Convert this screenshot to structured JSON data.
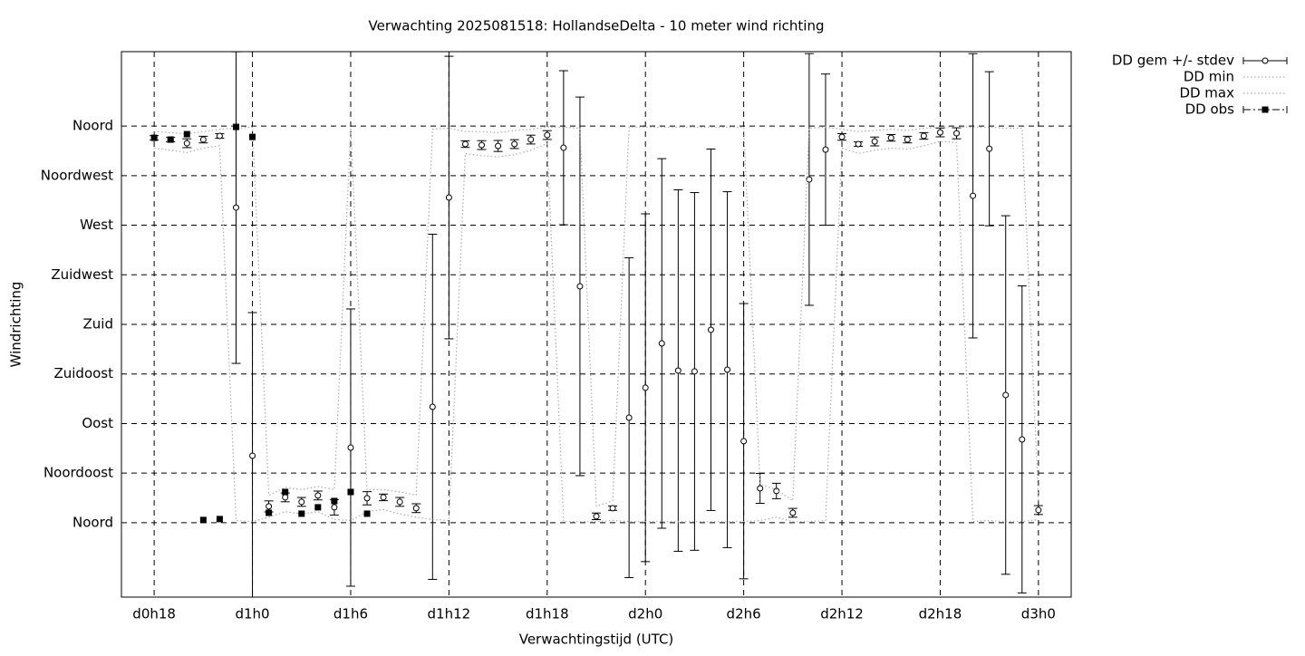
{
  "chart_data": {
    "type": "errorbar-line",
    "title": "Verwachting 2025081518: HollandseDelta - 10 meter wind richting",
    "x_label": "Verwachtingstijd (UTC)",
    "y_label": "Windrichting",
    "x": [
      18,
      19,
      20,
      21,
      22,
      23,
      24,
      25,
      26,
      27,
      28,
      29,
      30,
      31,
      32,
      33,
      34,
      35,
      36,
      37,
      38,
      39,
      40,
      41,
      42,
      43,
      44,
      45,
      46,
      47,
      48,
      49,
      50,
      51,
      52,
      53,
      54,
      55,
      56,
      57,
      58,
      59,
      60,
      61,
      62,
      63,
      64,
      65,
      66,
      67,
      68,
      69,
      70,
      71,
      72
    ],
    "xlim": [
      16,
      74
    ],
    "xticks": [
      {
        "value": 18,
        "label": "d0h18"
      },
      {
        "value": 24,
        "label": "d1h0"
      },
      {
        "value": 30,
        "label": "d1h6"
      },
      {
        "value": 36,
        "label": "d1h12"
      },
      {
        "value": 42,
        "label": "d1h18"
      },
      {
        "value": 48,
        "label": "d2h0"
      },
      {
        "value": 54,
        "label": "d2h6"
      },
      {
        "value": 60,
        "label": "d2h12"
      },
      {
        "value": 66,
        "label": "d2h18"
      },
      {
        "value": 72,
        "label": "d3h0"
      }
    ],
    "ylim": [
      -67.5,
      427.5
    ],
    "yticks": [
      {
        "value": 0,
        "label": "Noord"
      },
      {
        "value": 45,
        "label": "Noordoost"
      },
      {
        "value": 90,
        "label": "Oost"
      },
      {
        "value": 135,
        "label": "Zuidoost"
      },
      {
        "value": 180,
        "label": "Zuid"
      },
      {
        "value": 225,
        "label": "Zuidwest"
      },
      {
        "value": 270,
        "label": "West"
      },
      {
        "value": 315,
        "label": "Noordwest"
      },
      {
        "value": 360,
        "label": "Noord"
      }
    ],
    "grid": true,
    "legend": "outside-top-right",
    "series": [
      {
        "name": "DD gem +/- stdev",
        "color": "#000000",
        "marker": "open-circle",
        "values": [
          349.3,
          347.7,
          344.4,
          347.7,
          351,
          286,
          60.8,
          14.8,
          23,
          18.9,
          24.7,
          14,
          68.2,
          22.2,
          23,
          18.9,
          13.2,
          105.2,
          295.1,
          343.6,
          342.7,
          341.9,
          343.6,
          347.7,
          351.8,
          340.3,
          214.5,
          5.8,
          13.2,
          95.3,
          122.5,
          162.7,
          138.1,
          137.3,
          175.1,
          138.9,
          74,
          31.2,
          28.8,
          9,
          311.5,
          338.6,
          350.1,
          343.6,
          346,
          349.3,
          347.7,
          351,
          354.2,
          353.4,
          296.7,
          339.4,
          115.9,
          75.6,
          11.5
        ],
        "errors": [
          2,
          2,
          4,
          3,
          2,
          141.4,
          129.9,
          5,
          4,
          4,
          4,
          7,
          125.8,
          6,
          3,
          4,
          4,
          156.6,
          128.2,
          3,
          4,
          5,
          4,
          4,
          4,
          69.9,
          171.8,
          3,
          2,
          145.1,
          157.8,
          167.7,
          164,
          162.3,
          164,
          161.5,
          124.9,
          13.6,
          7,
          4,
          114.2,
          68.6,
          3,
          2,
          4,
          3,
          3,
          3,
          4,
          5,
          129,
          69.9,
          162.7,
          139.3,
          4
        ]
      },
      {
        "name": "DD min",
        "color": "#aaaaaa",
        "dash": "dotted",
        "values": [
          340,
          338,
          336,
          340,
          342,
          2,
          1,
          5,
          10,
          8,
          10,
          3,
          2,
          10,
          12,
          8,
          5,
          3,
          2,
          335,
          333,
          332,
          334,
          338,
          344,
          1,
          1,
          1,
          2,
          1,
          1,
          1,
          1,
          1,
          1,
          1,
          1,
          2,
          5,
          1,
          1,
          2,
          340,
          335,
          338,
          340,
          339,
          342,
          346,
          345,
          1,
          2,
          1,
          1,
          3
        ]
      },
      {
        "name": "DD max",
        "color": "#aaaaaa",
        "dash": "dotted",
        "values": [
          355,
          354,
          353,
          355,
          357,
          358,
          359,
          25,
          32,
          30,
          33,
          30,
          358,
          30,
          30,
          28,
          25,
          357,
          358,
          355,
          355,
          354,
          356,
          357,
          359,
          359,
          358,
          15,
          20,
          359,
          359,
          359,
          359,
          359,
          359,
          359,
          359,
          35,
          30,
          20,
          358,
          359,
          357,
          355,
          356,
          357,
          356,
          358,
          359,
          359,
          359,
          359,
          358,
          358,
          20
        ]
      },
      {
        "name": "DD obs",
        "color": "#000000",
        "marker": "square",
        "values": [
          349.3,
          347.7,
          352.6,
          2.5,
          3.3,
          359.2,
          350.1,
          9,
          27.9,
          8.2,
          14,
          19.7,
          27.9,
          8.2,
          null,
          null,
          null,
          null,
          null,
          null,
          null,
          null,
          null,
          null,
          null,
          null,
          null,
          null,
          null,
          null,
          null,
          null,
          null,
          null,
          null,
          null,
          null,
          null,
          null,
          null,
          null,
          null,
          null,
          null,
          null,
          null,
          null,
          null,
          null,
          null,
          null,
          null,
          null,
          null,
          null
        ]
      }
    ]
  }
}
